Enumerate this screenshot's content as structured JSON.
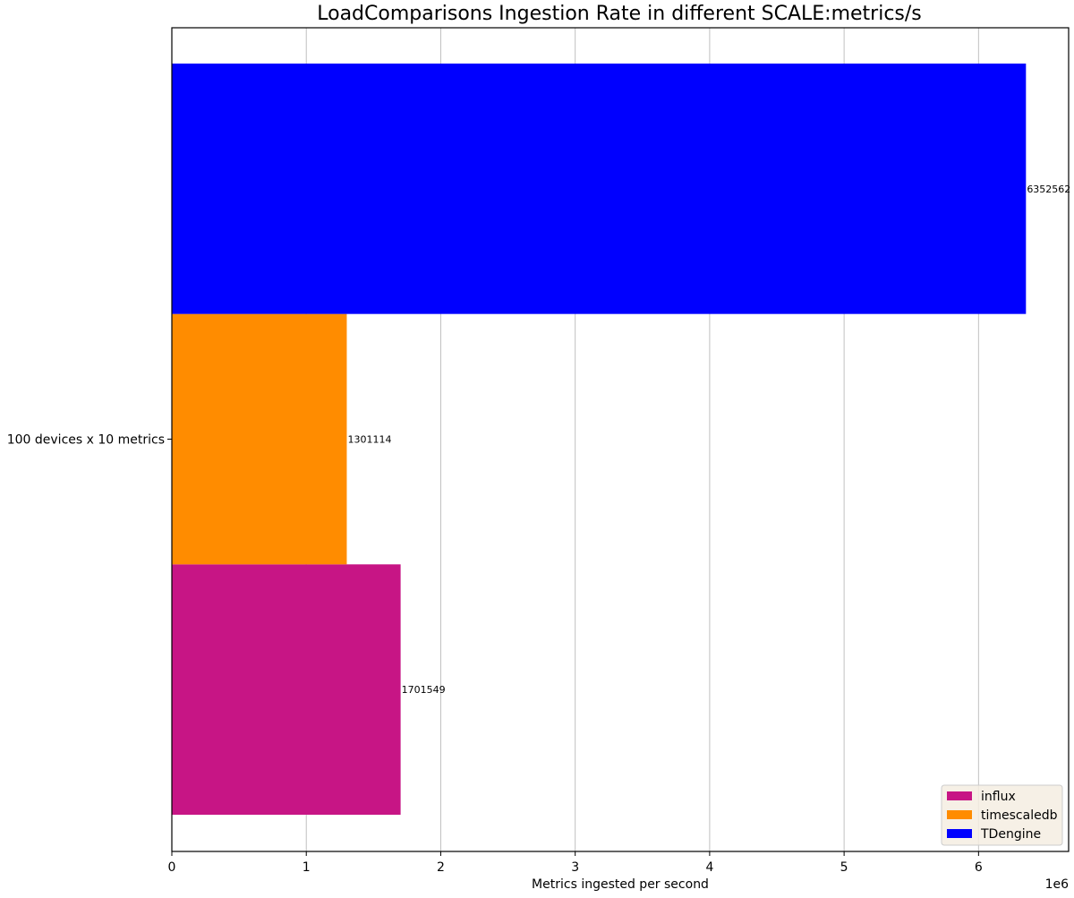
{
  "chart_data": {
    "type": "bar",
    "orientation": "horizontal",
    "title": "LoadComparisons Ingestion Rate in different SCALE:metrics/s",
    "xlabel": "Metrics ingested per second",
    "ylabel": "",
    "x_offset_text": "1e6",
    "xlim": [
      0,
      6670000
    ],
    "x_scale_divisor": 1000000,
    "xticks": [
      0,
      1000000,
      2000000,
      3000000,
      4000000,
      5000000,
      6000000
    ],
    "xtick_labels": [
      "0",
      "1",
      "2",
      "3",
      "4",
      "5",
      "6"
    ],
    "categories": [
      "100  devices x 10 metrics"
    ],
    "grid": "vertical",
    "legend_position": "lower right",
    "series": [
      {
        "name": "influx",
        "color": "#C71585",
        "values": [
          1701549
        ],
        "label": "1701549"
      },
      {
        "name": "timescaledb",
        "color": "#FF8C00",
        "values": [
          1301114
        ],
        "label": "1301114"
      },
      {
        "name": "TDengine",
        "color": "#0000FF",
        "values": [
          6352562
        ],
        "label": "6352562"
      }
    ],
    "legend": [
      {
        "name": "influx",
        "color": "#C71585"
      },
      {
        "name": "timescaledb",
        "color": "#FF8C00"
      },
      {
        "name": "TDengine",
        "color": "#0000FF"
      }
    ]
  }
}
